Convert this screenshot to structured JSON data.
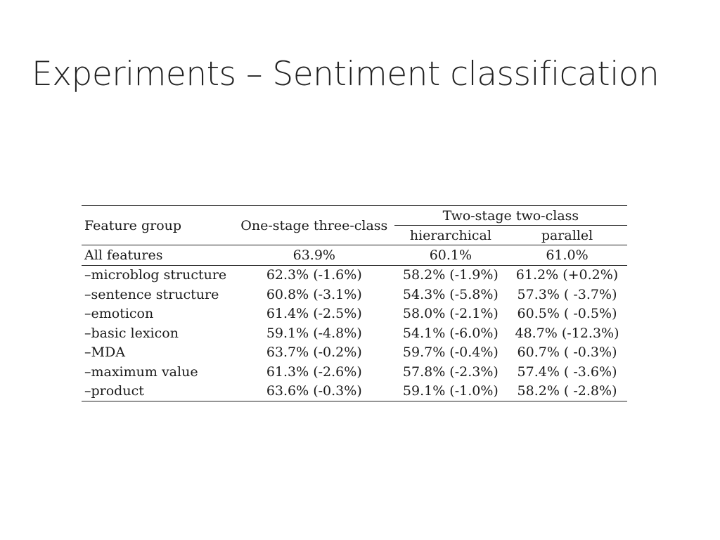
{
  "slide": {
    "title": "Experiments – Sentiment classification"
  },
  "table": {
    "headers": {
      "feature_group": "Feature group",
      "one_stage": "One-stage three-class",
      "two_stage": "Two-stage two-class",
      "hierarchical": "hierarchical",
      "parallel": "parallel"
    },
    "all_features": {
      "label": "All features",
      "one_stage": "63.9%",
      "hierarchical": "60.1%",
      "parallel": "61.0%"
    },
    "rows": [
      {
        "label": "–microblog structure",
        "one_stage": "62.3% (-1.6%)",
        "hierarchical": "58.2% (-1.9%)",
        "parallel": "61.2% (+0.2%)",
        "parallel_bold": true
      },
      {
        "label": "–sentence structure",
        "one_stage": "60.8% (-3.1%)",
        "hierarchical": "54.3% (-5.8%)",
        "parallel": "57.3% ( -3.7%)",
        "parallel_bold": false
      },
      {
        "label": "–emoticon",
        "one_stage": "61.4% (-2.5%)",
        "hierarchical": "58.0% (-2.1%)",
        "parallel": "60.5% ( -0.5%)",
        "parallel_bold": false
      },
      {
        "label": "–basic lexicon",
        "one_stage": "59.1% (-4.8%)",
        "hierarchical": "54.1% (-6.0%)",
        "parallel": "48.7% (-12.3%)",
        "parallel_bold": false
      },
      {
        "label": "–MDA",
        "one_stage": "63.7% (-0.2%)",
        "hierarchical": "59.7% (-0.4%)",
        "parallel": "60.7% ( -0.3%)",
        "parallel_bold": false
      },
      {
        "label": "–maximum value",
        "one_stage": "61.3% (-2.6%)",
        "hierarchical": "57.8% (-2.3%)",
        "parallel": "57.4% ( -3.6%)",
        "parallel_bold": false
      },
      {
        "label": "–product",
        "one_stage": "63.6% (-0.3%)",
        "hierarchical": "59.1% (-1.0%)",
        "parallel": "58.2% ( -2.8%)",
        "parallel_bold": false
      }
    ]
  }
}
